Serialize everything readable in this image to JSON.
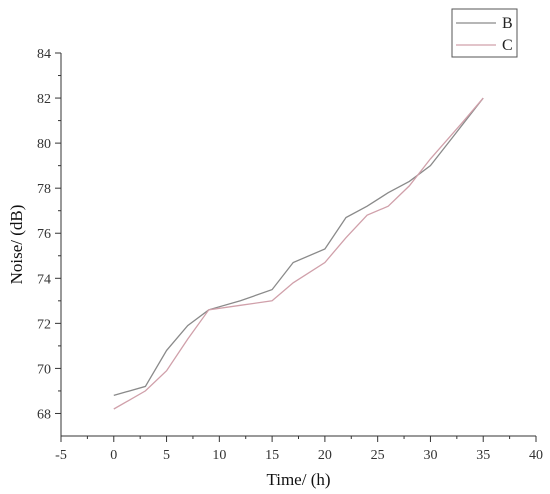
{
  "chart_data": {
    "type": "line",
    "xlabel": "Time/ (h)",
    "ylabel": "Noise/ (dB)",
    "xlim": [
      -5,
      40
    ],
    "ylim": [
      67,
      84
    ],
    "x_ticks": [
      -5,
      0,
      5,
      10,
      15,
      20,
      25,
      30,
      35,
      40
    ],
    "y_ticks": [
      68,
      70,
      72,
      74,
      76,
      78,
      80,
      82,
      84
    ],
    "grid": false,
    "legend_position": "top-right",
    "series": [
      {
        "name": "B",
        "color": "#8a8a8a",
        "points": [
          [
            0,
            68.8
          ],
          [
            3,
            69.2
          ],
          [
            5,
            70.8
          ],
          [
            7,
            71.9
          ],
          [
            9,
            72.6
          ],
          [
            12,
            73.0
          ],
          [
            15,
            73.5
          ],
          [
            17,
            74.7
          ],
          [
            20,
            75.3
          ],
          [
            22,
            76.7
          ],
          [
            24,
            77.2
          ],
          [
            26,
            77.8
          ],
          [
            28,
            78.3
          ],
          [
            30,
            79.0
          ],
          [
            32,
            80.2
          ],
          [
            35,
            82.0
          ]
        ]
      },
      {
        "name": "C",
        "color": "#d0a0aa",
        "points": [
          [
            0,
            68.2
          ],
          [
            3,
            69.0
          ],
          [
            5,
            69.9
          ],
          [
            7,
            71.3
          ],
          [
            9,
            72.6
          ],
          [
            12,
            72.8
          ],
          [
            15,
            73.0
          ],
          [
            17,
            73.8
          ],
          [
            20,
            74.7
          ],
          [
            22,
            75.8
          ],
          [
            24,
            76.8
          ],
          [
            26,
            77.2
          ],
          [
            28,
            78.1
          ],
          [
            30,
            79.3
          ],
          [
            33,
            80.9
          ],
          [
            35,
            82.0
          ]
        ]
      }
    ]
  }
}
